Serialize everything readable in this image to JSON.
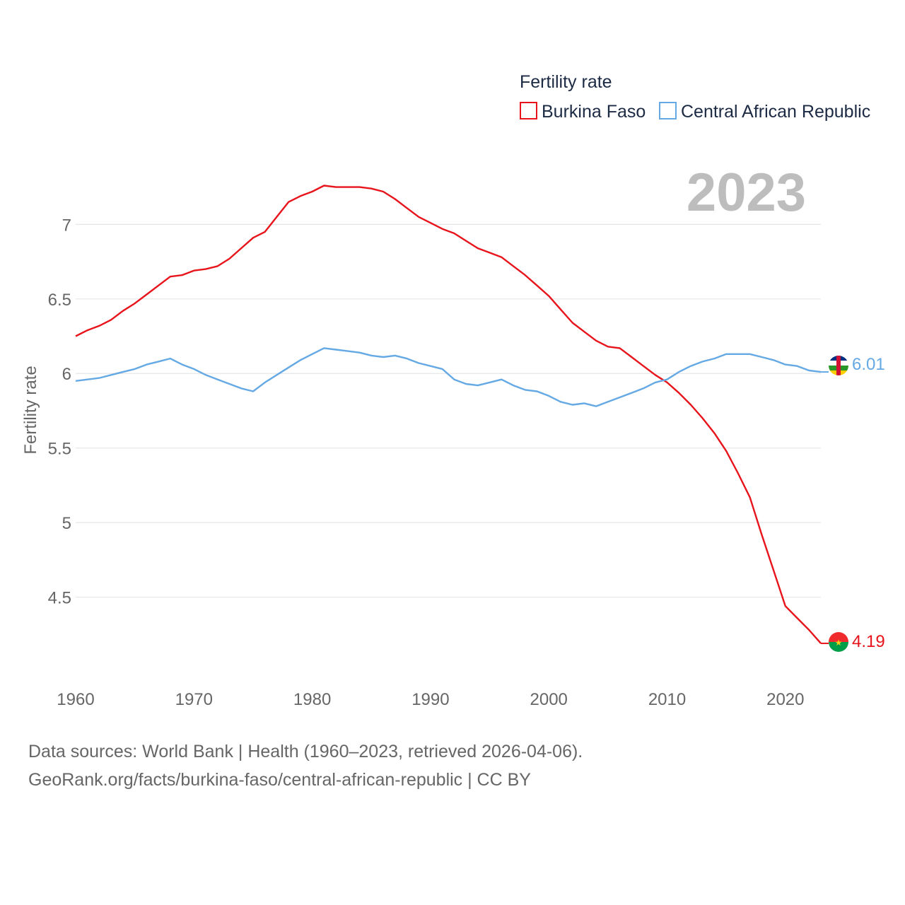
{
  "chart_data": {
    "type": "line",
    "legend_title": "Fertility rate",
    "ylabel": "Fertility rate",
    "xlabel": "",
    "year_label": "2023",
    "xlim": [
      1960,
      2023
    ],
    "ylim": [
      4.0,
      7.4
    ],
    "x_ticks": [
      1960,
      1970,
      1980,
      1990,
      2000,
      2010,
      2020
    ],
    "y_ticks": [
      4.5,
      5,
      5.5,
      6,
      6.5,
      7
    ],
    "y_tick_labels": [
      "4.5",
      "5",
      "5.5",
      "6",
      "6.5",
      "7"
    ],
    "x": [
      1960,
      1961,
      1962,
      1963,
      1964,
      1965,
      1966,
      1967,
      1968,
      1969,
      1970,
      1971,
      1972,
      1973,
      1974,
      1975,
      1976,
      1977,
      1978,
      1979,
      1980,
      1981,
      1982,
      1983,
      1984,
      1985,
      1986,
      1987,
      1988,
      1989,
      1990,
      1991,
      1992,
      1993,
      1994,
      1995,
      1996,
      1997,
      1998,
      1999,
      2000,
      2001,
      2002,
      2003,
      2004,
      2005,
      2006,
      2007,
      2008,
      2009,
      2010,
      2011,
      2012,
      2013,
      2014,
      2015,
      2016,
      2017,
      2018,
      2019,
      2020,
      2021,
      2022,
      2023
    ],
    "series": [
      {
        "name": "Burkina Faso",
        "color": "#e8141b",
        "end_label": "4.19",
        "values": [
          6.25,
          6.29,
          6.32,
          6.36,
          6.42,
          6.47,
          6.53,
          6.59,
          6.65,
          6.66,
          6.69,
          6.7,
          6.72,
          6.77,
          6.84,
          6.91,
          6.95,
          7.05,
          7.15,
          7.19,
          7.22,
          7.26,
          7.25,
          7.25,
          7.25,
          7.24,
          7.22,
          7.17,
          7.11,
          7.05,
          7.01,
          6.97,
          6.94,
          6.89,
          6.84,
          6.81,
          6.78,
          6.72,
          6.66,
          6.59,
          6.52,
          6.43,
          6.34,
          6.28,
          6.22,
          6.18,
          6.17,
          6.11,
          6.05,
          5.99,
          5.94,
          5.87,
          5.79,
          5.7,
          5.6,
          5.48,
          5.33,
          5.17,
          4.92,
          4.68,
          4.44,
          4.36,
          4.28,
          4.19
        ]
      },
      {
        "name": "Central African Republic",
        "color": "#65a9e4",
        "end_label": "6.01",
        "values": [
          5.95,
          5.96,
          5.97,
          5.99,
          6.01,
          6.03,
          6.06,
          6.08,
          6.1,
          6.06,
          6.03,
          5.99,
          5.96,
          5.93,
          5.9,
          5.88,
          5.94,
          5.99,
          6.04,
          6.09,
          6.13,
          6.17,
          6.16,
          6.15,
          6.14,
          6.12,
          6.11,
          6.12,
          6.1,
          6.07,
          6.05,
          6.03,
          5.96,
          5.93,
          5.92,
          5.94,
          5.96,
          5.92,
          5.89,
          5.88,
          5.85,
          5.81,
          5.79,
          5.8,
          5.78,
          5.81,
          5.84,
          5.87,
          5.9,
          5.94,
          5.96,
          6.01,
          6.05,
          6.08,
          6.1,
          6.13,
          6.13,
          6.13,
          6.11,
          6.09,
          6.06,
          6.05,
          6.02,
          6.01
        ]
      }
    ]
  },
  "footer": {
    "line1": "Data sources: World Bank | Health (1960–2023, retrieved 2026-04-06).",
    "line2": "GeoRank.org/facts/burkina-faso/central-african-republic | CC BY"
  }
}
